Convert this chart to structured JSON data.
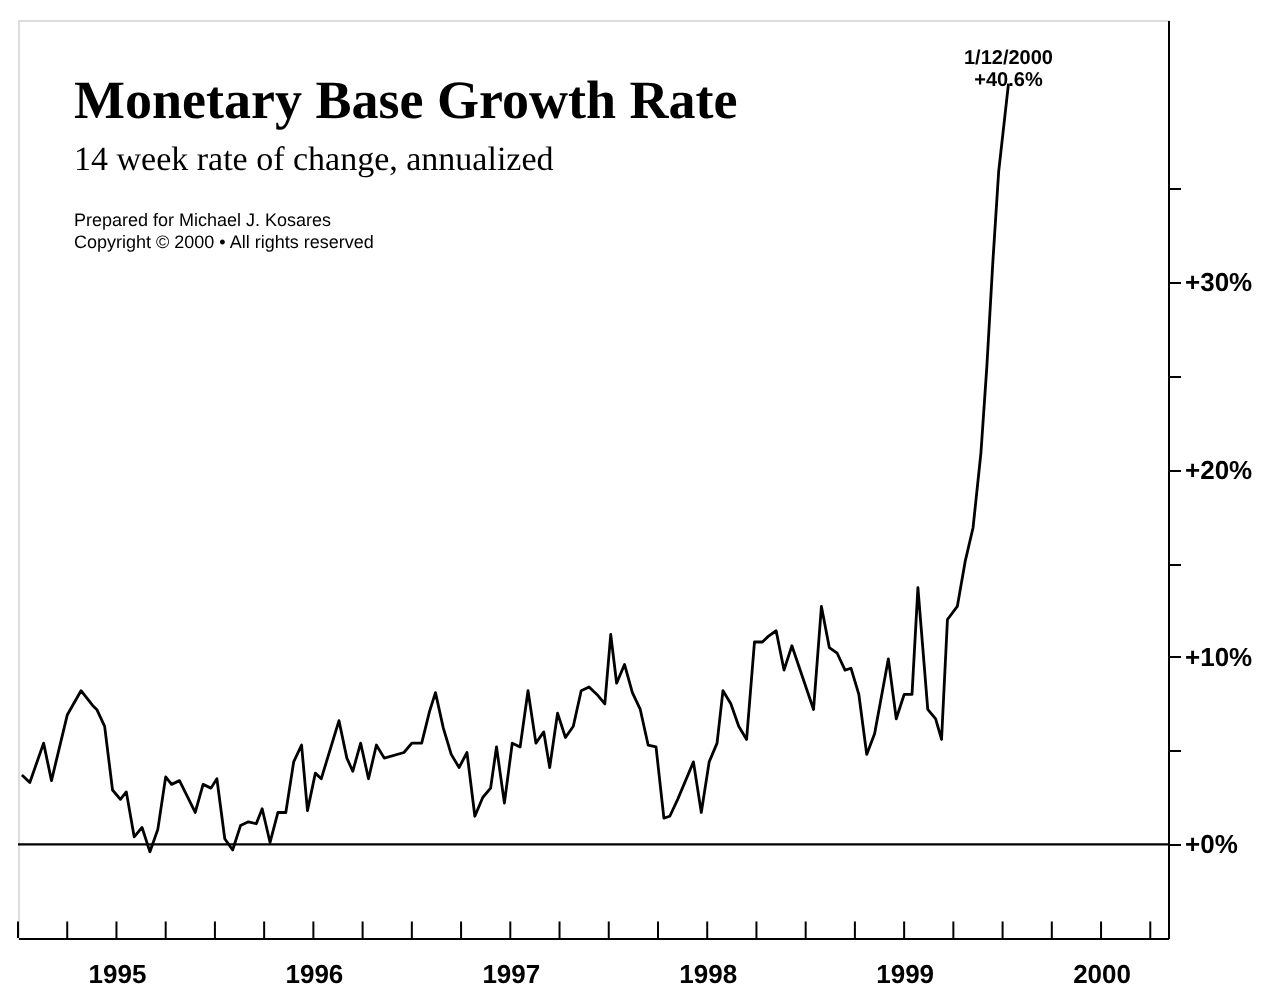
{
  "chart_data": {
    "type": "line",
    "title": "Monetary Base Growth Rate",
    "subtitle": "14 week rate of change, annualized",
    "annotations": [
      {
        "text": "1/12/2000\n+40.6%",
        "x": 2000.03,
        "y": 40.6
      },
      "Prepared for Michael J. Kosares",
      "Copyright © 2000 • All rights reserved"
    ],
    "series": [
      {
        "color": "#000000",
        "x": [
          1995.02,
          1995.06,
          1995.13,
          1995.17,
          1995.25,
          1995.32,
          1995.38,
          1995.4,
          1995.44,
          1995.48,
          1995.52,
          1995.55,
          1995.59,
          1995.63,
          1995.67,
          1995.71,
          1995.75,
          1995.78,
          1995.82,
          1995.9,
          1995.94,
          1995.98,
          1996.01,
          1996.05,
          1996.09,
          1996.13,
          1996.17,
          1996.21,
          1996.24,
          1996.28,
          1996.32,
          1996.36,
          1996.4,
          1996.44,
          1996.47,
          1996.51,
          1996.54,
          1996.63,
          1996.67,
          1996.7,
          1996.74,
          1996.78,
          1996.82,
          1996.86,
          1996.96,
          1997.0,
          1997.05,
          1997.09,
          1997.12,
          1997.16,
          1997.2,
          1997.24,
          1997.28,
          1997.32,
          1997.36,
          1997.4,
          1997.43,
          1997.47,
          1997.51,
          1997.55,
          1997.59,
          1997.63,
          1997.67,
          1997.7,
          1997.74,
          1997.78,
          1997.82,
          1997.86,
          1997.9,
          1997.94,
          1997.98,
          1998.01,
          1998.04,
          1998.08,
          1998.12,
          1998.16,
          1998.2,
          1998.24,
          1998.28,
          1998.31,
          1998.35,
          1998.43,
          1998.47,
          1998.51,
          1998.55,
          1998.58,
          1998.62,
          1998.66,
          1998.7,
          1998.74,
          1998.78,
          1998.81,
          1998.85,
          1998.89,
          1998.93,
          1999.04,
          1999.08,
          1999.12,
          1999.16,
          1999.2,
          1999.23,
          1999.27,
          1999.31,
          1999.35,
          1999.42,
          1999.46,
          1999.5,
          1999.54,
          1999.57,
          1999.62,
          1999.66,
          1999.69,
          1999.72,
          1999.77,
          1999.81,
          1999.85,
          1999.89,
          1999.92,
          1999.95,
          1999.98,
          2000.03
        ],
        "values": [
          3.7,
          3.3,
          5.4,
          3.4,
          6.9,
          8.2,
          7.4,
          7.2,
          6.3,
          2.9,
          2.4,
          2.8,
          0.4,
          0.9,
          -0.4,
          0.8,
          3.6,
          3.2,
          3.4,
          1.7,
          3.2,
          3.0,
          3.5,
          0.3,
          -0.3,
          1.0,
          1.2,
          1.1,
          1.9,
          0.1,
          1.7,
          1.7,
          4.4,
          5.3,
          1.8,
          3.8,
          3.5,
          6.6,
          4.6,
          3.9,
          5.4,
          3.5,
          5.3,
          4.6,
          4.9,
          5.4,
          5.4,
          7.1,
          8.1,
          6.2,
          4.8,
          4.1,
          4.9,
          1.5,
          2.5,
          3.0,
          5.2,
          2.2,
          5.4,
          5.2,
          8.2,
          5.4,
          6.0,
          4.1,
          7.0,
          5.7,
          6.3,
          8.2,
          8.4,
          8.0,
          7.5,
          11.2,
          8.6,
          9.6,
          8.1,
          7.2,
          5.3,
          5.2,
          1.4,
          1.5,
          2.4,
          4.4,
          1.7,
          4.4,
          5.4,
          8.2,
          7.5,
          6.3,
          5.6,
          10.8,
          10.8,
          11.1,
          11.4,
          9.3,
          10.6,
          7.2,
          12.7,
          10.5,
          10.2,
          9.3,
          9.4,
          8.0,
          4.8,
          5.9,
          9.9,
          6.7,
          8.0,
          8.0,
          13.7,
          7.2,
          6.7,
          5.6,
          12.0,
          12.7,
          15.1,
          16.9,
          20.9,
          25.5,
          31.0,
          35.9,
          40.6
        ]
      }
    ],
    "xlim": [
      1995,
      2000.84
    ],
    "xticks": [
      {
        "value": 1995,
        "label": null
      },
      {
        "value": 1995.25,
        "label": null
      },
      {
        "value": 1995.5,
        "label": "1995"
      },
      {
        "value": 1995.75,
        "label": null
      },
      {
        "value": 1996,
        "label": null
      },
      {
        "value": 1996.25,
        "label": null
      },
      {
        "value": 1996.5,
        "label": "1996"
      },
      {
        "value": 1996.75,
        "label": null
      },
      {
        "value": 1997,
        "label": null
      },
      {
        "value": 1997.25,
        "label": null
      },
      {
        "value": 1997.5,
        "label": "1997"
      },
      {
        "value": 1997.75,
        "label": null
      },
      {
        "value": 1998,
        "label": null
      },
      {
        "value": 1998.25,
        "label": null
      },
      {
        "value": 1998.5,
        "label": "1998"
      },
      {
        "value": 1998.75,
        "label": null
      },
      {
        "value": 1999,
        "label": null
      },
      {
        "value": 1999.25,
        "label": null
      },
      {
        "value": 1999.5,
        "label": "1999"
      },
      {
        "value": 1999.75,
        "label": null
      },
      {
        "value": 2000,
        "label": null
      },
      {
        "value": 2000.25,
        "label": null
      },
      {
        "value": 2000.5,
        "label": "2000"
      },
      {
        "value": 2000.75,
        "label": null
      }
    ],
    "ylim": [
      -5,
      44
    ],
    "yticks": [
      {
        "value": 0,
        "label": "+0%"
      },
      {
        "value": 5,
        "label": null
      },
      {
        "value": 10,
        "label": "+10%"
      },
      {
        "value": 15,
        "label": null
      },
      {
        "value": 20,
        "label": "+20%"
      },
      {
        "value": 25,
        "label": null
      },
      {
        "value": 30,
        "label": "+30%"
      },
      {
        "value": 35,
        "label": null
      }
    ],
    "ref_lines": [
      {
        "axis": "y",
        "value": 0,
        "color": "#000000"
      }
    ],
    "grid": false,
    "marker": "none",
    "line_style": "solid"
  }
}
